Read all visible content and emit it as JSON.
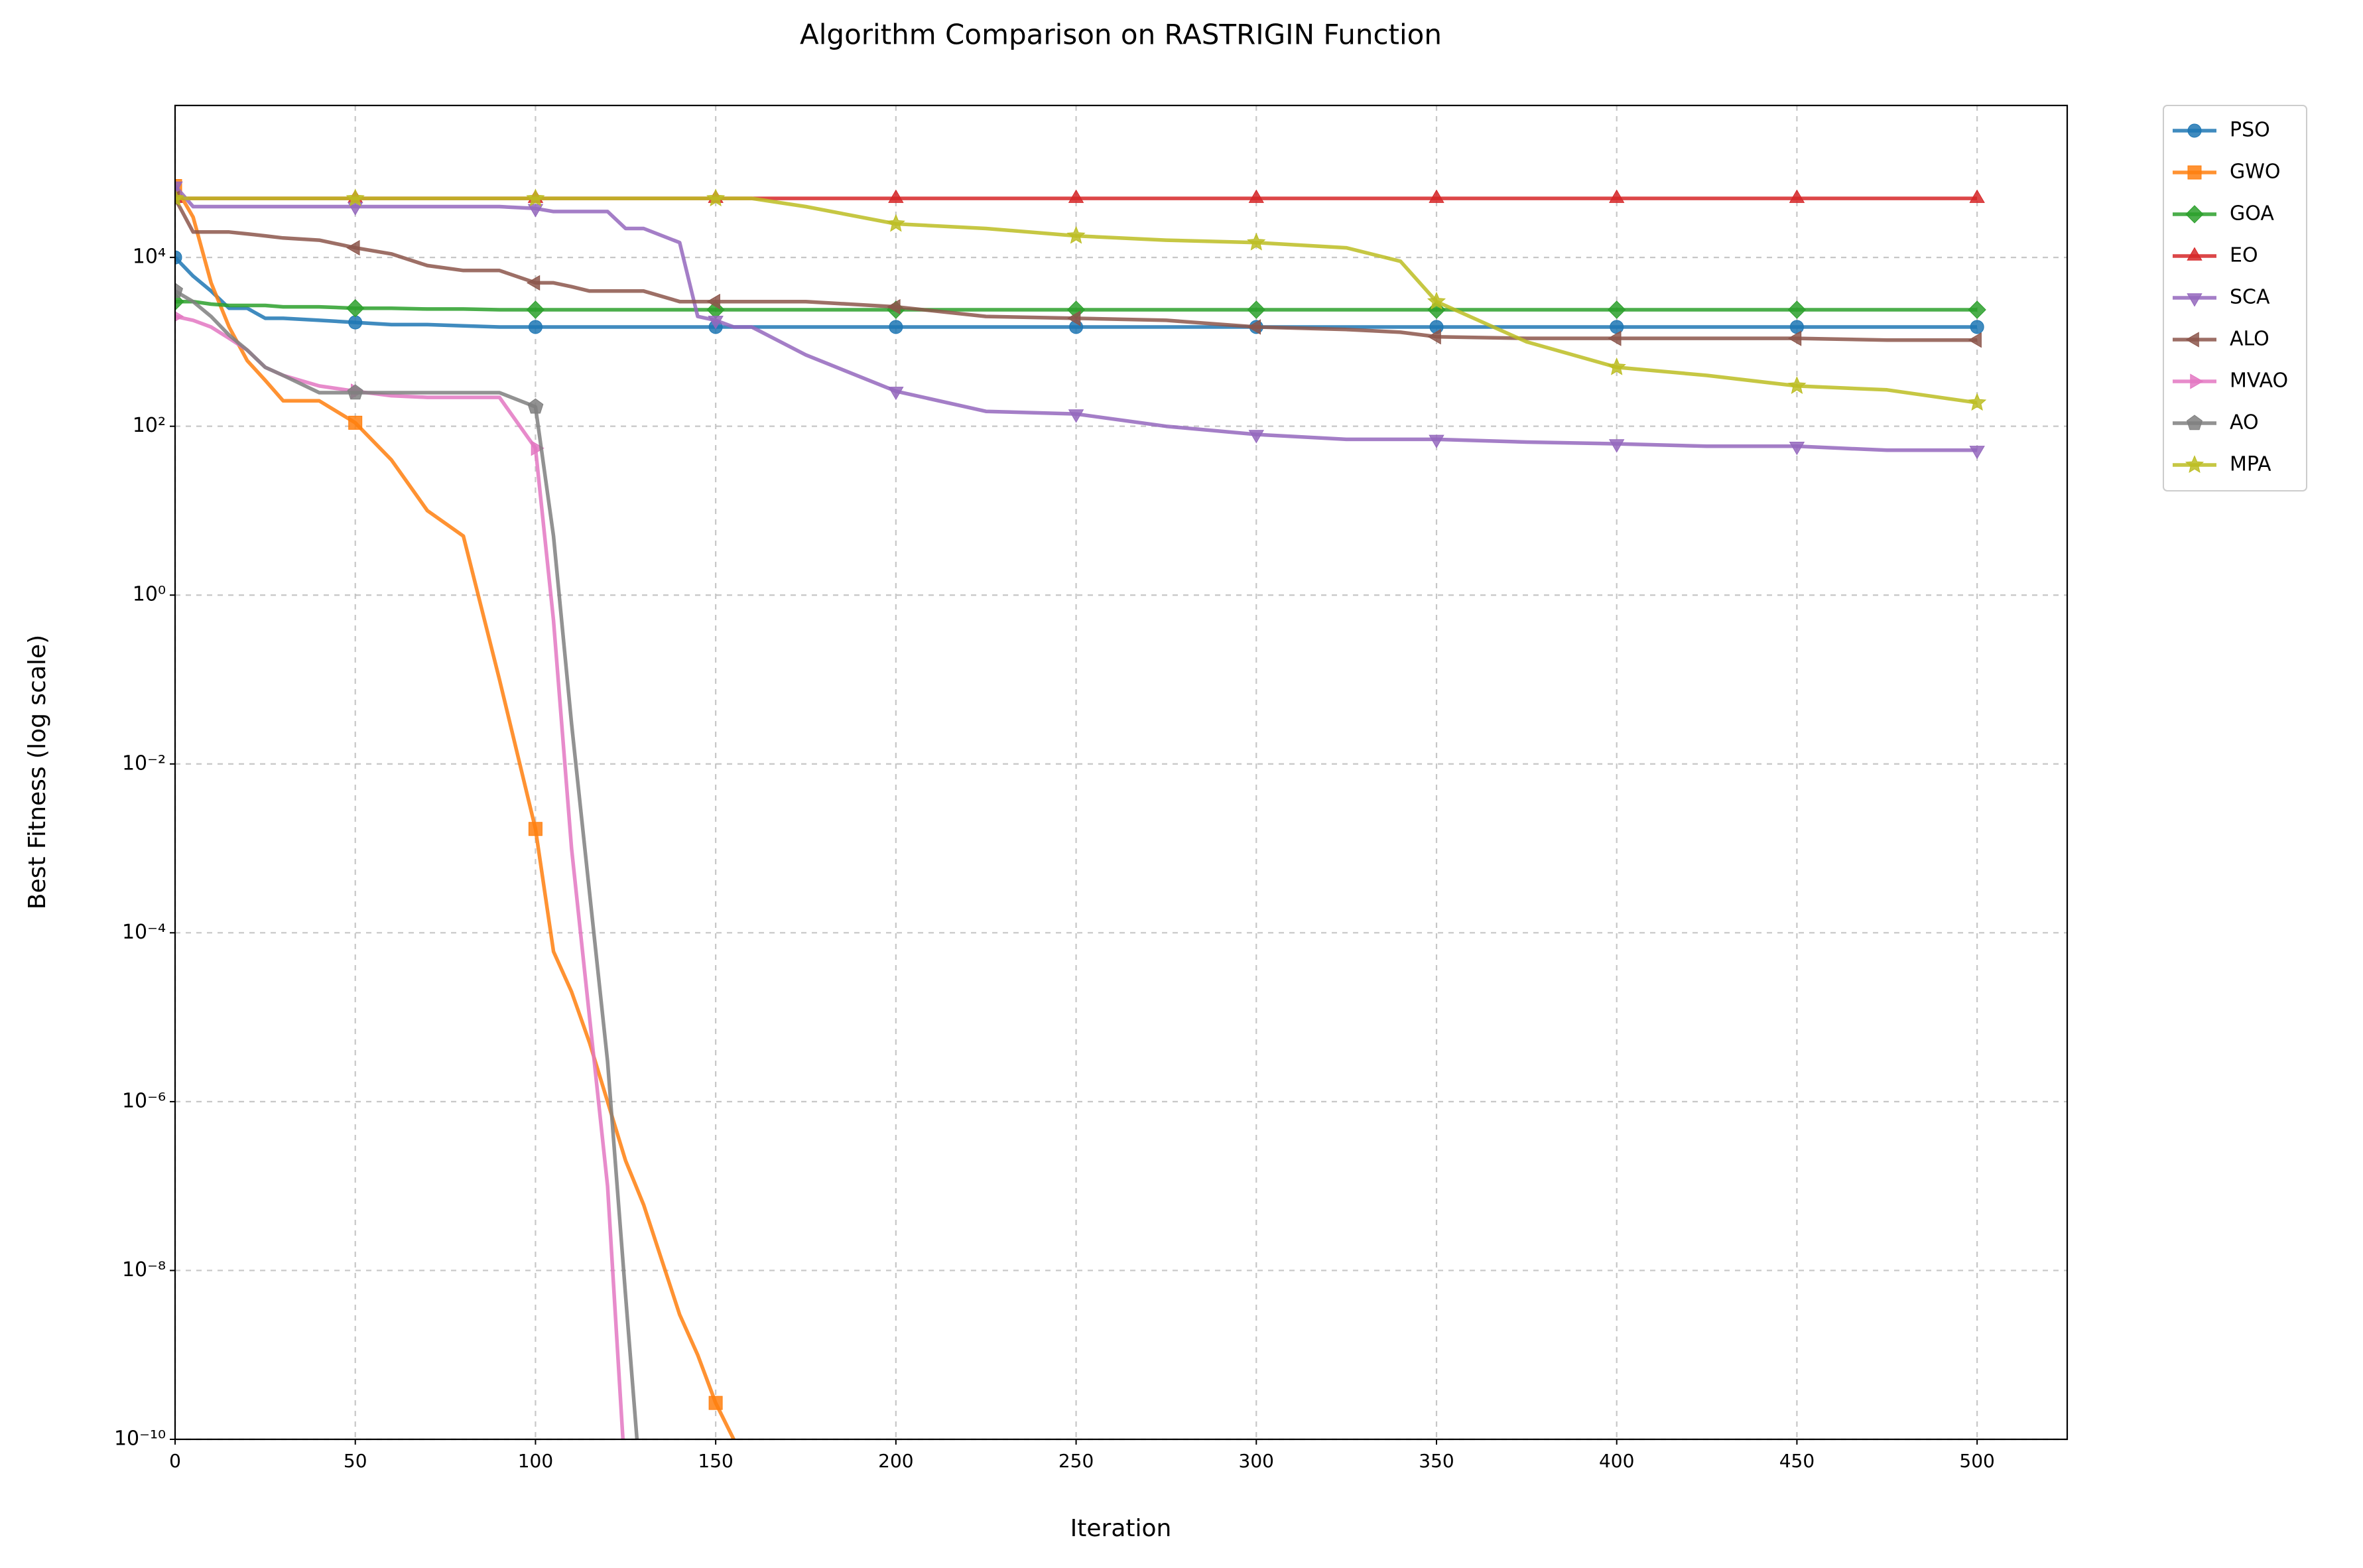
{
  "chart_data": {
    "type": "line",
    "title": "Algorithm Comparison on RASTRIGIN Function",
    "x_label": "Iteration",
    "y_label": "Best Fitness (log scale)",
    "log_scale_y": true,
    "grid": true,
    "legend_position": "outside upper right",
    "marker_every": 50,
    "xlim": [
      0,
      525
    ],
    "ylim": [
      1e-10,
      631000
    ],
    "xticks": [
      0,
      50,
      100,
      150,
      200,
      250,
      300,
      350,
      400,
      450,
      500
    ],
    "yticks": [
      {
        "value": 1e-10,
        "label": "10⁻¹⁰"
      },
      {
        "value": 1e-08,
        "label": "10⁻⁸"
      },
      {
        "value": 1e-06,
        "label": "10⁻⁶"
      },
      {
        "value": 0.0001,
        "label": "10⁻⁴"
      },
      {
        "value": 0.01,
        "label": "10⁻²"
      },
      {
        "value": 1,
        "label": "10⁰"
      },
      {
        "value": 100,
        "label": "10²"
      },
      {
        "value": 10000,
        "label": "10⁴"
      }
    ],
    "x": [
      0,
      5,
      10,
      15,
      20,
      25,
      30,
      40,
      50,
      60,
      70,
      80,
      90,
      100,
      105,
      110,
      115,
      120,
      125,
      130,
      140,
      145,
      150,
      155,
      160,
      175,
      200,
      225,
      250,
      275,
      300,
      325,
      340,
      350,
      375,
      400,
      425,
      450,
      475,
      500
    ],
    "series": [
      {
        "name": "PSO",
        "color": "#1f77b4",
        "marker": "circle",
        "values": [
          10000,
          6000,
          4000,
          2500,
          2500,
          1900,
          1900,
          1800,
          1700,
          1600,
          1600,
          1550,
          1500,
          1500,
          1500,
          1500,
          1500,
          1500,
          1500,
          1500,
          1500,
          1500,
          1500,
          1500,
          1500,
          1500,
          1500,
          1500,
          1500,
          1500,
          1500,
          1500,
          1500,
          1500,
          1500,
          1500,
          1500,
          1500,
          1500,
          1500
        ]
      },
      {
        "name": "GWO",
        "color": "#ff7f0e",
        "marker": "square",
        "values": [
          70000,
          30000,
          5000,
          1500,
          600,
          350,
          200,
          200,
          110,
          40,
          10,
          5,
          0.1,
          0.0017,
          6e-05,
          2e-05,
          5e-06,
          1e-06,
          2e-07,
          6e-08,
          3e-09,
          1e-09,
          2.7e-10,
          1e-10,
          1e-11,
          null,
          null,
          null,
          null,
          null,
          null,
          null,
          null,
          null,
          null,
          null,
          null,
          null,
          null,
          null
        ]
      },
      {
        "name": "GOA",
        "color": "#2ca02c",
        "marker": "diamond",
        "values": [
          3000,
          3000,
          2800,
          2700,
          2700,
          2700,
          2600,
          2600,
          2500,
          2500,
          2450,
          2450,
          2400,
          2400,
          2400,
          2400,
          2400,
          2400,
          2400,
          2400,
          2400,
          2400,
          2400,
          2400,
          2400,
          2400,
          2400,
          2400,
          2400,
          2400,
          2400,
          2400,
          2400,
          2400,
          2400,
          2400,
          2400,
          2400,
          2400,
          2400
        ]
      },
      {
        "name": "EO",
        "color": "#d62728",
        "marker": "triangle-up",
        "values": [
          50000,
          50000,
          50000,
          50000,
          50000,
          50000,
          50000,
          50000,
          50000,
          50000,
          50000,
          50000,
          50000,
          50000,
          50000,
          50000,
          50000,
          50000,
          50000,
          50000,
          50000,
          50000,
          50000,
          50000,
          50000,
          50000,
          50000,
          50000,
          50000,
          50000,
          50000,
          50000,
          50000,
          50000,
          50000,
          50000,
          50000,
          50000,
          50000,
          50000
        ]
      },
      {
        "name": "SCA",
        "color": "#9467bd",
        "marker": "triangle-down",
        "values": [
          70000,
          40000,
          40000,
          40000,
          40000,
          40000,
          40000,
          40000,
          40000,
          40000,
          40000,
          40000,
          40000,
          38000,
          35000,
          35000,
          35000,
          35000,
          22000,
          22000,
          15000,
          2000,
          1800,
          1500,
          1500,
          700,
          260,
          150,
          140,
          100,
          80,
          70,
          70,
          70,
          65,
          62,
          58,
          58,
          52,
          52
        ]
      },
      {
        "name": "ALO",
        "color": "#8c564b",
        "marker": "triangle-left",
        "values": [
          50000,
          20000,
          20000,
          20000,
          19000,
          18000,
          17000,
          16000,
          13000,
          11000,
          8000,
          7000,
          7000,
          5000,
          5000,
          4500,
          4000,
          4000,
          4000,
          4000,
          3000,
          3000,
          3000,
          3000,
          3000,
          3000,
          2600,
          2000,
          1900,
          1800,
          1500,
          1400,
          1300,
          1150,
          1100,
          1100,
          1100,
          1100,
          1050,
          1050
        ]
      },
      {
        "name": "MVAO",
        "color": "#e377c2",
        "marker": "triangle-right",
        "values": [
          2000,
          1800,
          1500,
          1100,
          800,
          500,
          400,
          300,
          260,
          230,
          220,
          220,
          220,
          55,
          0.5,
          0.001,
          1e-05,
          1e-07,
          3e-11,
          null,
          null,
          null,
          null,
          null,
          null,
          null,
          null,
          null,
          null,
          null,
          null,
          null,
          null,
          null,
          null,
          null,
          null,
          null,
          null,
          null
        ]
      },
      {
        "name": "AO",
        "color": "#7f7f7f",
        "marker": "pentagon",
        "values": [
          4000,
          3000,
          2000,
          1200,
          800,
          500,
          400,
          250,
          250,
          250,
          250,
          250,
          250,
          170,
          5,
          0.03,
          0.0003,
          3e-06,
          5e-09,
          1e-11,
          null,
          null,
          null,
          null,
          null,
          null,
          null,
          null,
          null,
          null,
          null,
          null,
          null,
          null,
          null,
          null,
          null,
          null,
          null,
          null
        ]
      },
      {
        "name": "MPA",
        "color": "#bcbd22",
        "marker": "star",
        "values": [
          50000,
          50000,
          50000,
          50000,
          50000,
          50000,
          50000,
          50000,
          50000,
          50000,
          50000,
          50000,
          50000,
          50000,
          50000,
          50000,
          50000,
          50000,
          50000,
          50000,
          50000,
          50000,
          50000,
          50000,
          50000,
          40000,
          25000,
          22000,
          18000,
          16000,
          15000,
          13000,
          9000,
          3000,
          1000,
          500,
          400,
          300,
          270,
          190
        ]
      }
    ]
  }
}
